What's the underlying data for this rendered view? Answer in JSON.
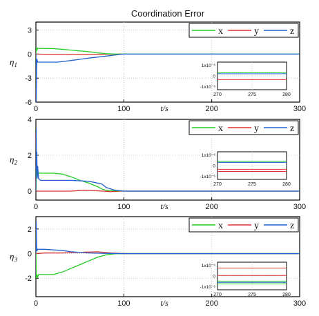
{
  "chart_data": {
    "type": "line",
    "title": "Coordination Error",
    "xlabel": "t/s",
    "xlim": [
      0,
      300
    ],
    "xticks": [
      "0",
      "100",
      "200",
      "300"
    ],
    "grid": true,
    "legend_position": "top-right",
    "legend": [
      "x",
      "y",
      "z"
    ],
    "colors": {
      "x": "#22cc22",
      "y": "#e03030",
      "z": "#2060d0"
    },
    "panels": [
      {
        "ylabel": "η1",
        "ylim": [
          -6,
          4
        ],
        "yticks": [
          3,
          0,
          -3,
          -6
        ],
        "ytick_labels": [
          "3",
          "0",
          "-3",
          "-6"
        ],
        "series": [
          {
            "name": "x",
            "x": [
              0,
              0.5,
              1,
              2,
              3,
              5,
              10,
              20,
              30,
              40,
              50,
              60,
              70,
              80,
              90,
              100,
              300
            ],
            "y": [
              0,
              0.8,
              0.5,
              0.75,
              0.7,
              0.7,
              0.7,
              0.68,
              0.6,
              0.5,
              0.4,
              0.3,
              0.15,
              0.05,
              0.01,
              0,
              0
            ]
          },
          {
            "name": "y",
            "x": [
              0,
              10,
              30,
              60,
              80,
              100,
              300
            ],
            "y": [
              0,
              -0.02,
              -0.05,
              -0.05,
              -0.02,
              0,
              0
            ]
          },
          {
            "name": "z",
            "x": [
              0,
              0.3,
              0.6,
              1,
              2,
              5,
              10,
              25,
              40,
              60,
              80,
              95,
              100,
              300
            ],
            "y": [
              0,
              -6,
              -3,
              -0.6,
              -1,
              -1,
              -1,
              -1,
              -0.8,
              -0.5,
              -0.25,
              -0.05,
              0,
              0
            ]
          }
        ],
        "inset": {
          "xlim": [
            270,
            280
          ],
          "xticks": [
            "270",
            "275",
            "280"
          ],
          "ytick_labels": [
            "1x10⁻⁶",
            "0",
            "-1x10⁻⁶"
          ],
          "levels": [
            {
              "name": "x",
              "values": [
                0.3
              ]
            },
            {
              "name": "y",
              "values": [
                -0.35
              ]
            },
            {
              "name": "z",
              "values": [
                0.2
              ]
            }
          ]
        }
      },
      {
        "ylabel": "η2",
        "ylim": [
          -0.5,
          4
        ],
        "yticks": [
          4,
          2,
          0
        ],
        "ytick_labels": [
          "4",
          "2",
          "0"
        ],
        "series": [
          {
            "name": "x",
            "x": [
              0,
              0.5,
              1,
              2,
              4,
              10,
              20,
              30,
              40,
              50,
              60,
              65,
              70,
              75,
              80,
              90,
              100,
              300
            ],
            "y": [
              0,
              1.2,
              0.8,
              1.05,
              1,
              1,
              1,
              0.95,
              0.8,
              0.6,
              0.45,
              0.35,
              0.25,
              0.12,
              0.05,
              0.02,
              0,
              0
            ]
          },
          {
            "name": "y",
            "x": [
              0,
              20,
              40,
              55,
              70,
              85,
              100,
              300
            ],
            "y": [
              0,
              0,
              0,
              0.05,
              0.02,
              -0.03,
              0,
              0
            ]
          },
          {
            "name": "z",
            "x": [
              0,
              0.3,
              0.6,
              1,
              1.5,
              2,
              3,
              5,
              10,
              40,
              60,
              75,
              80,
              90,
              100,
              300
            ],
            "y": [
              0,
              3.5,
              1.2,
              2.2,
              0.7,
              1.4,
              0.7,
              0.6,
              0.6,
              0.6,
              0.55,
              0.4,
              0.2,
              0.05,
              0,
              0
            ]
          }
        ],
        "inset": {
          "xlim": [
            270,
            280
          ],
          "xticks": [
            "270",
            "275",
            "280"
          ],
          "ytick_labels": [
            "1x10⁻⁶",
            "0",
            "-1x10⁻⁶"
          ],
          "levels": [
            {
              "name": "x",
              "values": [
                0.4
              ]
            },
            {
              "name": "y",
              "values": [
                -0.35,
                -0.55
              ]
            },
            {
              "name": "z",
              "values": [
                0.3
              ]
            }
          ]
        }
      },
      {
        "ylabel": "η3",
        "ylim": [
          -3.5,
          3
        ],
        "yticks": [
          2,
          0,
          -2
        ],
        "ytick_labels": [
          "2",
          "0",
          "-2"
        ],
        "series": [
          {
            "name": "x",
            "x": [
              0,
              0.3,
              0.6,
              1,
              2,
              3,
              5,
              10,
              20,
              30,
              40,
              50,
              60,
              70,
              80,
              90,
              100,
              300
            ],
            "y": [
              0,
              -1.6,
              -2,
              -1.7,
              -1.9,
              -1.7,
              -1.7,
              -1.7,
              -1.7,
              -1.5,
              -1.2,
              -0.9,
              -0.6,
              -0.3,
              -0.1,
              -0.02,
              0,
              0
            ]
          },
          {
            "name": "y",
            "x": [
              0,
              10,
              30,
              50,
              70,
              85,
              100,
              300
            ],
            "y": [
              0,
              0.05,
              0.05,
              0.1,
              0.15,
              0.05,
              0,
              0
            ]
          },
          {
            "name": "z",
            "x": [
              0,
              0.3,
              0.6,
              1,
              2,
              5,
              10,
              20,
              30,
              40,
              60,
              80,
              100,
              300
            ],
            "y": [
              0,
              2.6,
              1.2,
              0.2,
              0.35,
              0.35,
              0.35,
              0.3,
              0.25,
              0.15,
              0.05,
              0.02,
              0,
              0
            ]
          }
        ],
        "inset": {
          "xlim": [
            270,
            280
          ],
          "xticks": [
            "270",
            "275",
            "280"
          ],
          "ytick_labels": [
            "1x10⁻⁶",
            "0",
            "-1x10⁻⁶"
          ],
          "levels": [
            {
              "name": "x",
              "values": [
                -0.5,
                -0.75
              ]
            },
            {
              "name": "y",
              "values": [
                0.75,
                0.05
              ]
            },
            {
              "name": "z",
              "values": [
                -0.6
              ]
            }
          ]
        }
      }
    ]
  }
}
